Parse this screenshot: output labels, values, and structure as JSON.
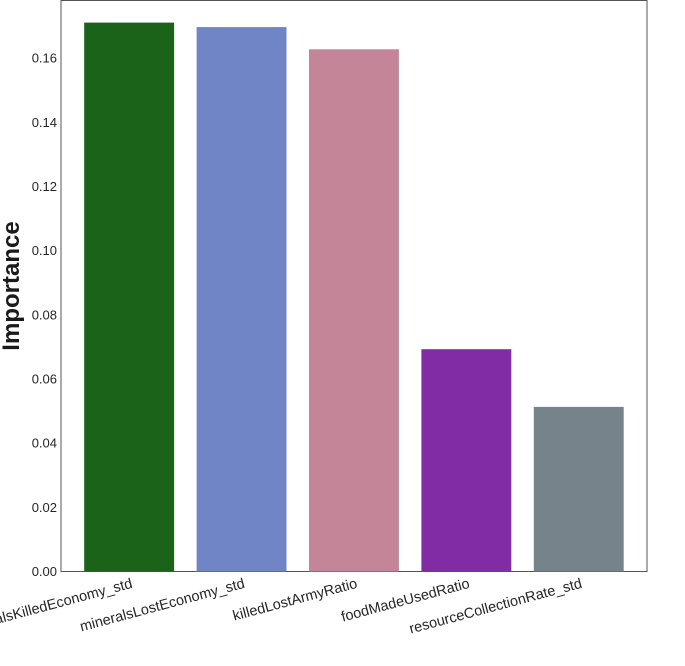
{
  "chart_data": {
    "type": "bar",
    "title": "",
    "xlabel": "",
    "ylabel": "Importance",
    "ylim": [
      0,
      0.178
    ],
    "yticks": [
      0.0,
      0.02,
      0.04,
      0.06,
      0.08,
      0.1,
      0.12,
      0.14,
      0.16
    ],
    "ytick_labels": [
      "0.00",
      "0.02",
      "0.04",
      "0.06",
      "0.08",
      "0.10",
      "0.12",
      "0.14",
      "0.16"
    ],
    "categories": [
      "mineralsKilledEconomy_std",
      "mineralsLostEconomy_std",
      "killedLostArmyRatio",
      "foodMadeUsedRatio",
      "resourceCollectionRate_std"
    ],
    "values": [
      0.1711,
      0.1697,
      0.1628,
      0.0693,
      0.0513
    ],
    "colors": [
      "#1b6318",
      "#7085c6",
      "#c48599",
      "#812ca4",
      "#76838a"
    ],
    "grid": false,
    "legend": "none"
  }
}
